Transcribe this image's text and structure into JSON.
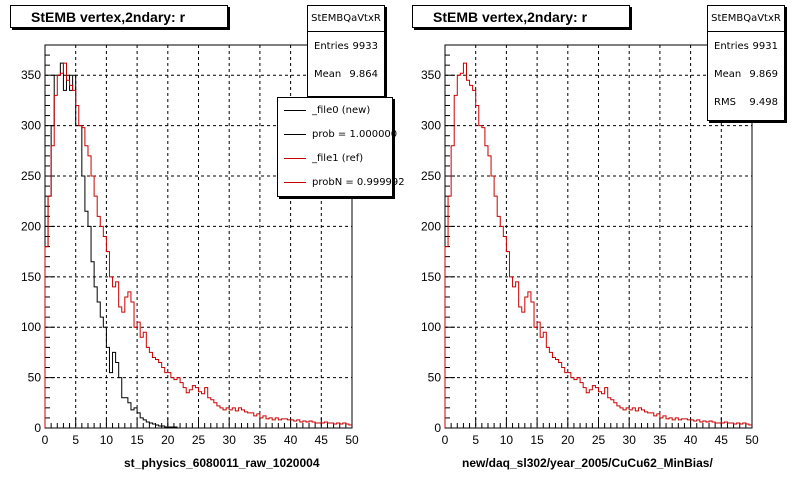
{
  "colors": {
    "new": "#000000",
    "ref": "#cc0000",
    "grid": "#000000"
  },
  "left_panel": {
    "title": "StEMB  vertex,2ndary: r",
    "stats": {
      "name": "StEMBQaVtxR",
      "entries_label": "Entries",
      "entries": "9933",
      "mean_label": "Mean",
      "mean": "9.864"
    },
    "legend": [
      {
        "label": "_file0 (new)",
        "color": "#000000"
      },
      {
        "label": "prob = 1.000000",
        "color": "#000000"
      },
      {
        "label": "_file1 (ref)",
        "color": "#cc0000"
      },
      {
        "label": "probN = 0.999992",
        "color": "#cc0000"
      }
    ],
    "xtitle": "st_physics_6080011_raw_1020004"
  },
  "right_panel": {
    "title": "StEMB  vertex,2ndary: r",
    "stats": {
      "name": "StEMBQaVtxR",
      "entries_label": "Entries",
      "entries": "9931",
      "mean_label": "Mean",
      "mean": "9.869",
      "rms_label": "RMS",
      "rms": "9.498"
    },
    "xtitle": "new/daq_sl302/year_2005/CuCu62_MinBias/"
  },
  "chart_data": [
    {
      "type": "histogram",
      "title": "StEMB  vertex,2ndary: r",
      "xlabel": "st_physics_6080011_raw_1020004",
      "xlim": [
        0,
        50
      ],
      "ylim": [
        0,
        380
      ],
      "xticks": [
        0,
        5,
        10,
        15,
        20,
        25,
        30,
        35,
        40,
        45,
        50
      ],
      "yticks": [
        0,
        50,
        100,
        150,
        200,
        250,
        300,
        350
      ],
      "grid": true,
      "bin_width": 0.5,
      "series": [
        {
          "name": "_file0 (new)",
          "values": [
            180,
            230,
            300,
            350,
            350,
            362,
            335,
            350,
            335,
            350,
            300,
            300,
            250,
            215,
            200,
            165,
            140,
            125,
            110,
            100,
            80,
            55,
            75,
            65,
            50,
            30,
            30,
            25,
            18,
            20,
            15,
            10,
            8,
            6,
            5,
            4,
            3,
            2,
            2,
            1,
            1,
            1,
            1,
            0,
            0,
            0,
            0,
            0,
            0,
            0,
            0,
            0,
            0,
            0,
            0,
            0,
            0,
            0,
            0,
            0,
            0,
            0,
            0,
            0,
            0,
            0,
            0,
            0,
            0,
            0,
            0,
            0,
            0,
            0,
            0,
            0,
            0,
            0,
            0,
            0,
            0,
            0,
            0,
            0,
            0,
            0,
            0,
            0,
            0,
            0,
            0,
            0,
            0,
            0,
            0,
            0,
            0,
            0,
            0,
            0
          ]
        },
        {
          "name": "_file1 (ref)",
          "values": [
            180,
            230,
            280,
            330,
            350,
            352,
            362,
            345,
            340,
            335,
            320,
            300,
            298,
            280,
            270,
            250,
            230,
            210,
            200,
            190,
            175,
            150,
            140,
            145,
            120,
            115,
            130,
            135,
            125,
            100,
            105,
            90,
            95,
            80,
            75,
            70,
            68,
            65,
            60,
            55,
            55,
            50,
            48,
            50,
            45,
            40,
            35,
            38,
            42,
            40,
            36,
            34,
            40,
            30,
            28,
            25,
            22,
            20,
            18,
            20,
            18,
            20,
            17,
            20,
            18,
            16,
            15,
            15,
            12,
            14,
            10,
            12,
            9,
            10,
            8,
            10,
            8,
            9,
            9,
            8,
            8,
            7,
            8,
            6,
            7,
            6,
            7,
            6,
            5,
            5,
            5,
            6,
            5,
            5,
            4,
            5,
            4,
            5,
            4,
            3
          ]
        }
      ]
    },
    {
      "type": "histogram",
      "title": "StEMB  vertex,2ndary: r",
      "xlabel": "new/daq_sl302/year_2005/CuCu62_MinBias/",
      "xlim": [
        0,
        50
      ],
      "ylim": [
        0,
        380
      ],
      "xticks": [
        0,
        5,
        10,
        15,
        20,
        25,
        30,
        35,
        40,
        45,
        50
      ],
      "yticks": [
        0,
        50,
        100,
        150,
        200,
        250,
        300,
        350
      ],
      "grid": true,
      "bin_width": 0.5,
      "series": [
        {
          "name": "_file1 (ref)",
          "values": [
            180,
            230,
            280,
            330,
            350,
            352,
            362,
            345,
            340,
            335,
            320,
            300,
            298,
            280,
            270,
            250,
            230,
            210,
            200,
            190,
            175,
            150,
            140,
            145,
            120,
            115,
            130,
            135,
            125,
            100,
            105,
            90,
            95,
            80,
            75,
            70,
            68,
            65,
            60,
            55,
            55,
            50,
            48,
            50,
            45,
            40,
            35,
            38,
            42,
            40,
            36,
            34,
            40,
            30,
            28,
            25,
            22,
            20,
            18,
            20,
            18,
            20,
            17,
            20,
            18,
            16,
            15,
            15,
            12,
            14,
            10,
            12,
            9,
            10,
            8,
            10,
            8,
            9,
            9,
            8,
            8,
            7,
            8,
            6,
            7,
            6,
            7,
            6,
            5,
            5,
            5,
            6,
            5,
            5,
            4,
            5,
            4,
            5,
            4,
            3
          ]
        }
      ]
    }
  ]
}
